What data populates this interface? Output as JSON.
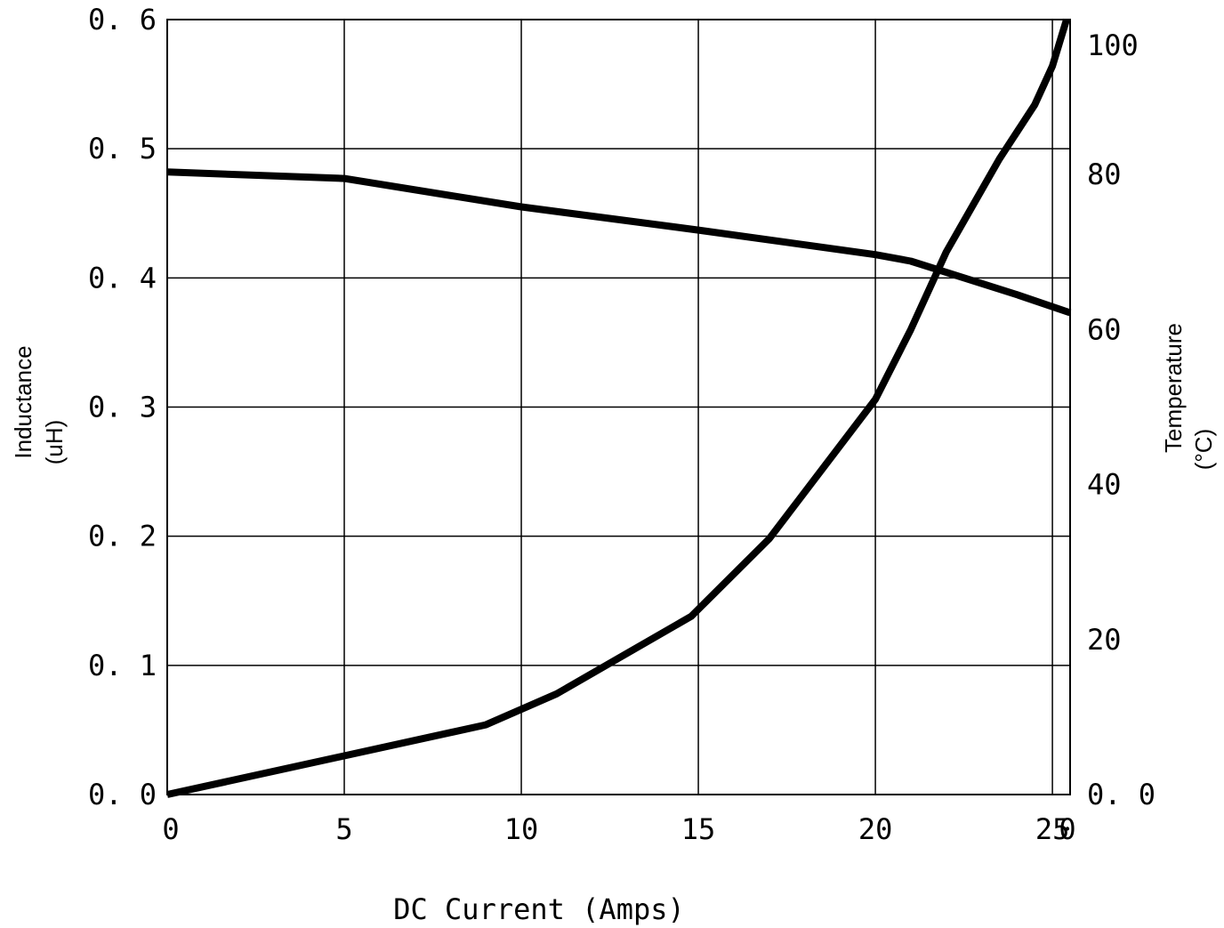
{
  "chart_data": {
    "type": "line",
    "title": "",
    "xlabel": "DC Current (Amps)",
    "ylabel_left": "Inductance",
    "ylabel_left_unit": "(uH)",
    "ylabel_right": "Temperature",
    "ylabel_right_unit": "(°C)",
    "xlim": [
      0,
      25.5
    ],
    "ylim_left": [
      0,
      0.6
    ],
    "ylim_right": [
      0,
      100
    ],
    "grid": true,
    "x_ticks": [
      {
        "value": 0,
        "label": "0"
      },
      {
        "value": 5,
        "label": "5"
      },
      {
        "value": 10,
        "label": "10"
      },
      {
        "value": 15,
        "label": "15"
      },
      {
        "value": 20,
        "label": "20"
      },
      {
        "value": 25,
        "label": "25"
      }
    ],
    "x_end_label": "0",
    "y_left_ticks": [
      {
        "value": 0,
        "label": "0. 0"
      },
      {
        "value": 0.1,
        "label": "0. 1"
      },
      {
        "value": 0.2,
        "label": "0. 2"
      },
      {
        "value": 0.3,
        "label": "0. 3"
      },
      {
        "value": 0.4,
        "label": "0. 4"
      },
      {
        "value": 0.5,
        "label": "0. 5"
      },
      {
        "value": 0.6,
        "label": "0. 6"
      }
    ],
    "y_right_ticks": [
      {
        "value": 0,
        "label": "0. 0"
      },
      {
        "value": 20,
        "label": "20"
      },
      {
        "value": 40,
        "label": "40"
      },
      {
        "value": 60,
        "label": "60"
      },
      {
        "value": 80,
        "label": "80"
      },
      {
        "value": 100,
        "label": "100"
      }
    ],
    "series": [
      {
        "axis": "left",
        "x": [
          0,
          5,
          10,
          15,
          20,
          21,
          22.5,
          24,
          25.5
        ],
        "y": [
          0.482,
          0.477,
          0.455,
          0.437,
          0.418,
          0.413,
          0.4,
          0.387,
          0.373
        ]
      },
      {
        "axis": "right",
        "x": [
          0,
          5,
          9,
          11,
          14.8,
          17,
          20,
          21,
          22,
          23.5,
          24.5,
          25,
          25.4
        ],
        "y": [
          0,
          5,
          9,
          13,
          23,
          33,
          51,
          60,
          70,
          82,
          89,
          94,
          100
        ]
      }
    ]
  }
}
